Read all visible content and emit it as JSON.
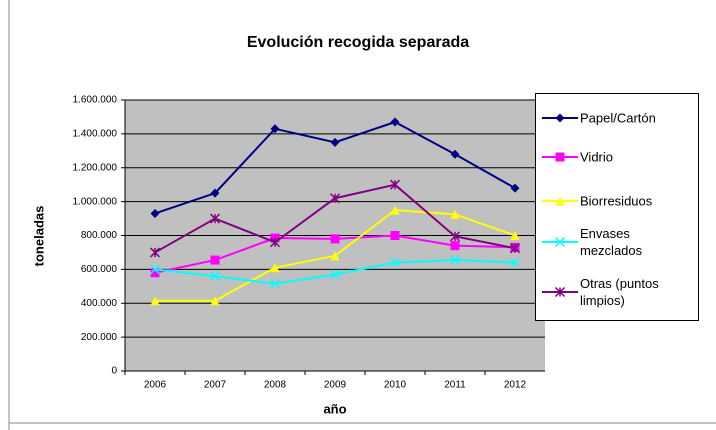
{
  "chart_data": {
    "type": "line",
    "title": "Evolución recogida separada",
    "x_label": "año",
    "y_label": "toneladas",
    "categories": [
      "2006",
      "2007",
      "2008",
      "2009",
      "2010",
      "2011",
      "2012"
    ],
    "series": [
      {
        "name": "Papel/Cartón",
        "color": "#000080",
        "marker": "diamond",
        "values": [
          930000,
          1050000,
          1430000,
          1350000,
          1470000,
          1280000,
          1080000
        ]
      },
      {
        "name": "Vidrio",
        "color": "#ff00ff",
        "marker": "square",
        "values": [
          580000,
          655000,
          785000,
          780000,
          800000,
          740000,
          730000
        ]
      },
      {
        "name": "Biorresiduos",
        "color": "#ffff00",
        "marker": "triangle",
        "values": [
          415000,
          415000,
          610000,
          680000,
          950000,
          925000,
          800000
        ]
      },
      {
        "name": "Envases mezclados",
        "color": "#00ffff",
        "marker": "x",
        "values": [
          600000,
          560000,
          515000,
          570000,
          640000,
          655000,
          640000
        ]
      },
      {
        "name": "Otras (puntos limpios)",
        "color": "#800080",
        "marker": "star",
        "values": [
          700000,
          900000,
          760000,
          1020000,
          1100000,
          795000,
          725000
        ]
      }
    ],
    "ylim": [
      0,
      1600000
    ],
    "yticks": [
      0,
      {
        "value": 200000,
        "label": "200.000"
      },
      {
        "value": 400000,
        "label": "400.000"
      },
      {
        "value": 600000,
        "label": "600.000"
      },
      {
        "value": 800000,
        "label": "800.000"
      },
      {
        "value": 1000000,
        "label": "1.000.000"
      },
      {
        "value": 1200000,
        "label": "1.200.000"
      },
      {
        "value": 1400000,
        "label": "1.400.000"
      },
      {
        "value": 1600000,
        "label": "1.600.000"
      }
    ],
    "grid": true,
    "legend": "right"
  }
}
